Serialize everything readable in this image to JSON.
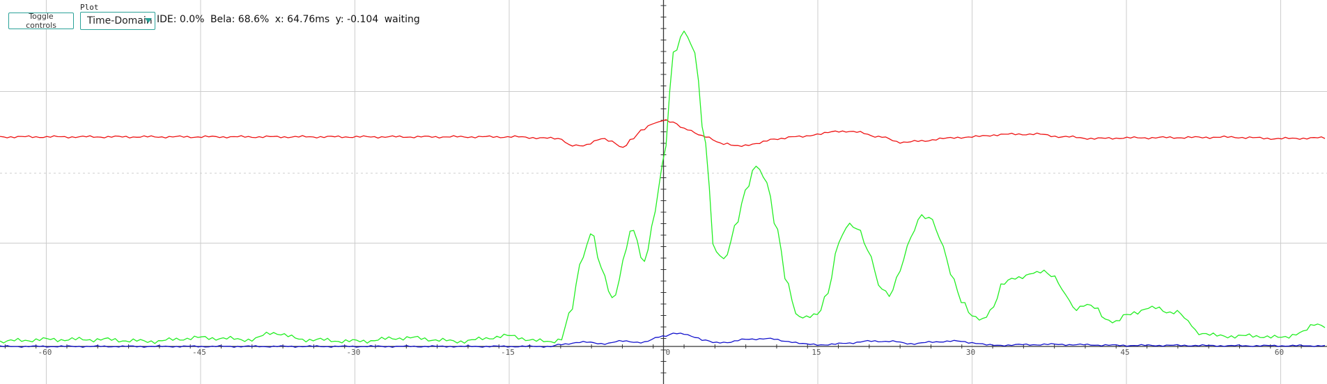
{
  "controls": {
    "toggle_label": "Toggle controls",
    "plot_mode_label": "Plot mode:",
    "plot_mode_value": "Time-Domain"
  },
  "status": {
    "ide": "IDE: 0.0%",
    "bela": "Bela: 68.6%",
    "x": "x: 64.76ms",
    "y": "y: -0.104",
    "state": "waiting"
  },
  "colors": {
    "grid": "#cccccc",
    "axis": "#333333",
    "red": "#ee1111",
    "green": "#22ee22",
    "blue": "#1111cc",
    "accent": "#2aa198"
  },
  "chart_data": {
    "type": "line",
    "xlim": [
      -64.5,
      64.5
    ],
    "ylim": [
      0,
      1
    ],
    "x_ticks": [
      -60,
      -45,
      -30,
      -15,
      0,
      15,
      30,
      45,
      60
    ],
    "grid": true,
    "series": [
      {
        "color": "red",
        "x": [
          -64.5,
          -15,
          -10,
          -9,
          -8,
          -6,
          -5,
          -4,
          -3,
          -2,
          -1,
          0,
          1,
          2,
          4,
          6,
          7,
          9,
          11,
          13,
          15,
          17,
          19,
          21,
          23,
          25,
          27,
          30,
          33,
          36,
          39,
          42,
          45,
          50,
          55,
          60,
          64.5
        ],
        "y": [
          0.605,
          0.605,
          0.6,
          0.58,
          0.578,
          0.6,
          0.59,
          0.575,
          0.6,
          0.625,
          0.645,
          0.653,
          0.645,
          0.63,
          0.605,
          0.585,
          0.578,
          0.585,
          0.6,
          0.605,
          0.612,
          0.622,
          0.618,
          0.605,
          0.59,
          0.592,
          0.6,
          0.605,
          0.612,
          0.613,
          0.605,
          0.6,
          0.602,
          0.603,
          0.604,
          0.6,
          0.602
        ]
      },
      {
        "color": "green",
        "x": [
          -64.5,
          -60,
          -55,
          -50,
          -45,
          -40,
          -38,
          -35,
          -30,
          -25,
          -20,
          -15,
          -12,
          -11,
          -10,
          -9,
          -8,
          -7,
          -6,
          -5,
          -4.5,
          -4,
          -3,
          -2.5,
          -2,
          -1.5,
          -1,
          0,
          1,
          2,
          3,
          4,
          5,
          6,
          7,
          8,
          9,
          10,
          11,
          12,
          13,
          14,
          15,
          16,
          17,
          18,
          19,
          20,
          21,
          22,
          23,
          24,
          25,
          26,
          27,
          28,
          29,
          30,
          31,
          32,
          33,
          34,
          35,
          36,
          37,
          38,
          39,
          40,
          41,
          42,
          43,
          44,
          45,
          46,
          47,
          48,
          49,
          50,
          51,
          52,
          54,
          56,
          58,
          60,
          62,
          63.5,
          64.5
        ],
        "y": [
          0.015,
          0.02,
          0.02,
          0.015,
          0.025,
          0.02,
          0.04,
          0.02,
          0.015,
          0.025,
          0.015,
          0.03,
          0.015,
          0.015,
          0.02,
          0.1,
          0.25,
          0.33,
          0.22,
          0.14,
          0.16,
          0.25,
          0.34,
          0.3,
          0.24,
          0.28,
          0.37,
          0.53,
          0.85,
          0.91,
          0.85,
          0.6,
          0.27,
          0.25,
          0.35,
          0.45,
          0.52,
          0.48,
          0.34,
          0.18,
          0.09,
          0.085,
          0.09,
          0.16,
          0.3,
          0.35,
          0.34,
          0.27,
          0.17,
          0.15,
          0.22,
          0.31,
          0.38,
          0.37,
          0.3,
          0.21,
          0.13,
          0.085,
          0.08,
          0.11,
          0.18,
          0.2,
          0.2,
          0.21,
          0.22,
          0.2,
          0.15,
          0.11,
          0.12,
          0.11,
          0.08,
          0.07,
          0.09,
          0.1,
          0.11,
          0.11,
          0.1,
          0.1,
          0.07,
          0.04,
          0.03,
          0.03,
          0.03,
          0.025,
          0.04,
          0.065,
          0.06
        ]
      },
      {
        "color": "blue",
        "x": [
          -64.5,
          -11,
          -10,
          -8,
          -6,
          -4,
          -2,
          0,
          1,
          2,
          3,
          4,
          5,
          6,
          8,
          10,
          12,
          14,
          16,
          18,
          20,
          22,
          24,
          26,
          28,
          30,
          32,
          35,
          38,
          40,
          45,
          50,
          55,
          60,
          64.5
        ],
        "y": [
          0.0,
          0.0,
          0.005,
          0.013,
          0.008,
          0.015,
          0.012,
          0.03,
          0.038,
          0.035,
          0.028,
          0.018,
          0.01,
          0.012,
          0.02,
          0.023,
          0.015,
          0.006,
          0.005,
          0.01,
          0.015,
          0.015,
          0.008,
          0.012,
          0.016,
          0.011,
          0.003,
          0.005,
          0.006,
          0.005,
          0.003,
          0.003,
          0.002,
          0.002,
          0.002
        ]
      }
    ]
  }
}
